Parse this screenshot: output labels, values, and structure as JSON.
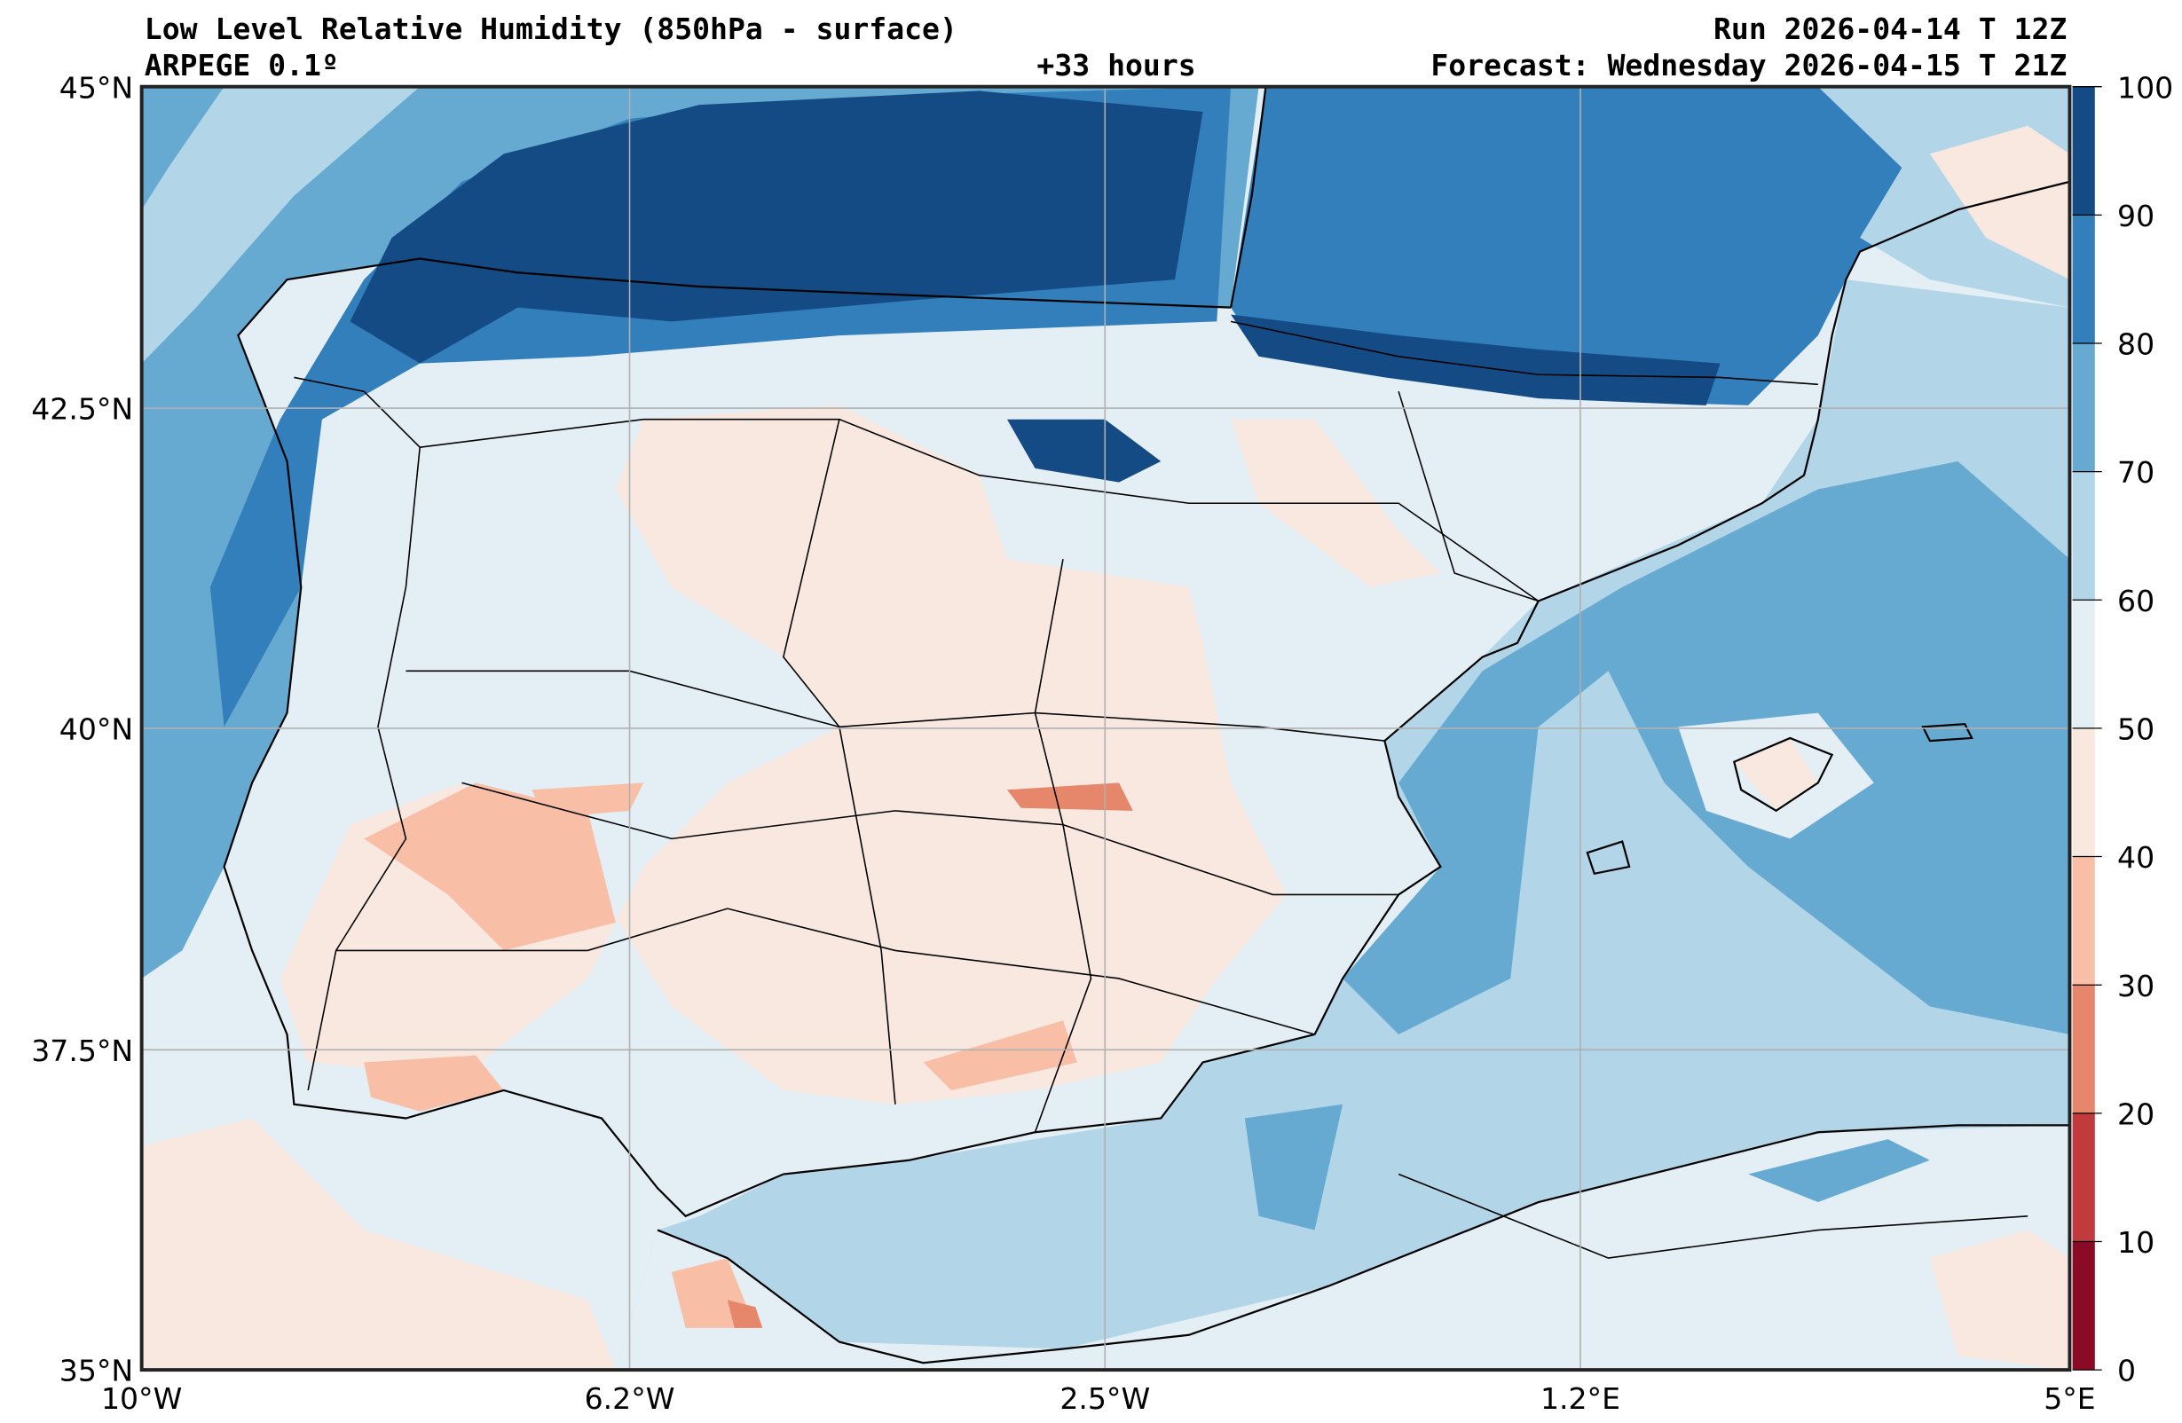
{
  "chart_data": {
    "type": "heatmap",
    "title": "Low Level Relative Humidity (850hPa - surface)",
    "model": "ARPEGE 0.1º",
    "lead_time": "+33 hours",
    "run": "Run 2026-04-14 T 12Z",
    "forecast": "Forecast: Wednesday 2026-04-15 T 21Z",
    "lat_ticks": [
      "45°N",
      "42.5°N",
      "40°N",
      "37.5°N",
      "35°N"
    ],
    "lat_values": [
      45,
      42.5,
      40,
      37.5,
      35
    ],
    "lon_ticks": [
      "10°W",
      "6.2°W",
      "2.5°W",
      "1.2°E",
      "5°E"
    ],
    "lon_values": [
      -10,
      -6.25,
      -2.5,
      1.25,
      5
    ],
    "xlim": [
      -10,
      5
    ],
    "ylim": [
      35,
      45
    ],
    "grid": true,
    "colorbar": {
      "levels": [
        0,
        10,
        20,
        30,
        40,
        50,
        60,
        70,
        80,
        90,
        100
      ],
      "labels": [
        "0",
        "10",
        "20",
        "30",
        "40",
        "50",
        "60",
        "70",
        "80",
        "90",
        "100"
      ],
      "colors": [
        "#8b0a26",
        "#c13a3d",
        "#e6866a",
        "#f8bfa6",
        "#f9e8e0",
        "#e4eef5",
        "#b2d5e8",
        "#67aad1",
        "#327fbb",
        "#144b84"
      ],
      "placement": "right"
    }
  }
}
